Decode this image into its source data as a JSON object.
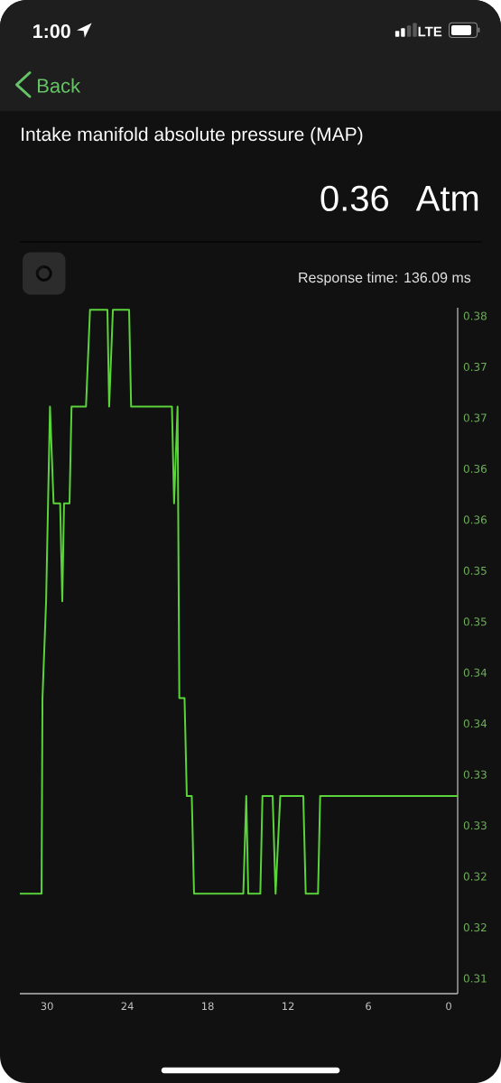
{
  "chart_data": {
    "type": "line",
    "title": "Intake manifold absolute pressure (MAP)",
    "annotations": [
      "1:00",
      "LTE",
      "Back",
      "0.36",
      "Atm",
      "Response time: 136.09 ms"
    ],
    "x": [
      32.03,
      30.41,
      30.34,
      30.07,
      29.78,
      29.51,
      29.02,
      28.86,
      28.73,
      28.32,
      28.17,
      27.09,
      26.79,
      25.49,
      25.36,
      25.08,
      23.87,
      23.72,
      20.67,
      20.51,
      20.25,
      20.12,
      19.73,
      19.56,
      19.19,
      19.02,
      15.34,
      15.12,
      14.97,
      14.07,
      13.91,
      13.15,
      12.93,
      12.58,
      10.86,
      10.68,
      9.76,
      9.6,
      -0.67
    ],
    "values": [
      0.3203,
      0.3203,
      0.3395,
      0.349,
      0.3681,
      0.3586,
      0.3586,
      0.349,
      0.3586,
      0.3586,
      0.3681,
      0.3681,
      0.3776,
      0.3776,
      0.3681,
      0.3776,
      0.3776,
      0.3681,
      0.3681,
      0.3586,
      0.3681,
      0.3395,
      0.3395,
      0.3299,
      0.3299,
      0.3203,
      0.3203,
      0.3299,
      0.3203,
      0.3203,
      0.3299,
      0.3299,
      0.3203,
      0.3299,
      0.3299,
      0.3203,
      0.3203,
      0.3299,
      0.3299
    ],
    "color": "#5bd33b",
    "xlim": [
      32.03,
      -0.67
    ],
    "xticks": [
      30,
      24,
      18,
      12,
      6,
      0
    ],
    "ylim": [
      0.3105,
      0.3778
    ],
    "yticks": [
      {
        "value": 0.312,
        "label": "0.31"
      },
      {
        "value": 0.317,
        "label": "0.32"
      },
      {
        "value": 0.322,
        "label": "0.32"
      },
      {
        "value": 0.327,
        "label": "0.33"
      },
      {
        "value": 0.332,
        "label": "0.33"
      },
      {
        "value": 0.337,
        "label": "0.34"
      },
      {
        "value": 0.342,
        "label": "0.34"
      },
      {
        "value": 0.347,
        "label": "0.35"
      },
      {
        "value": 0.352,
        "label": "0.35"
      },
      {
        "value": 0.357,
        "label": "0.36"
      },
      {
        "value": 0.362,
        "label": "0.36"
      },
      {
        "value": 0.367,
        "label": "0.37"
      },
      {
        "value": 0.372,
        "label": "0.37"
      },
      {
        "value": 0.377,
        "label": "0.38"
      }
    ]
  }
}
